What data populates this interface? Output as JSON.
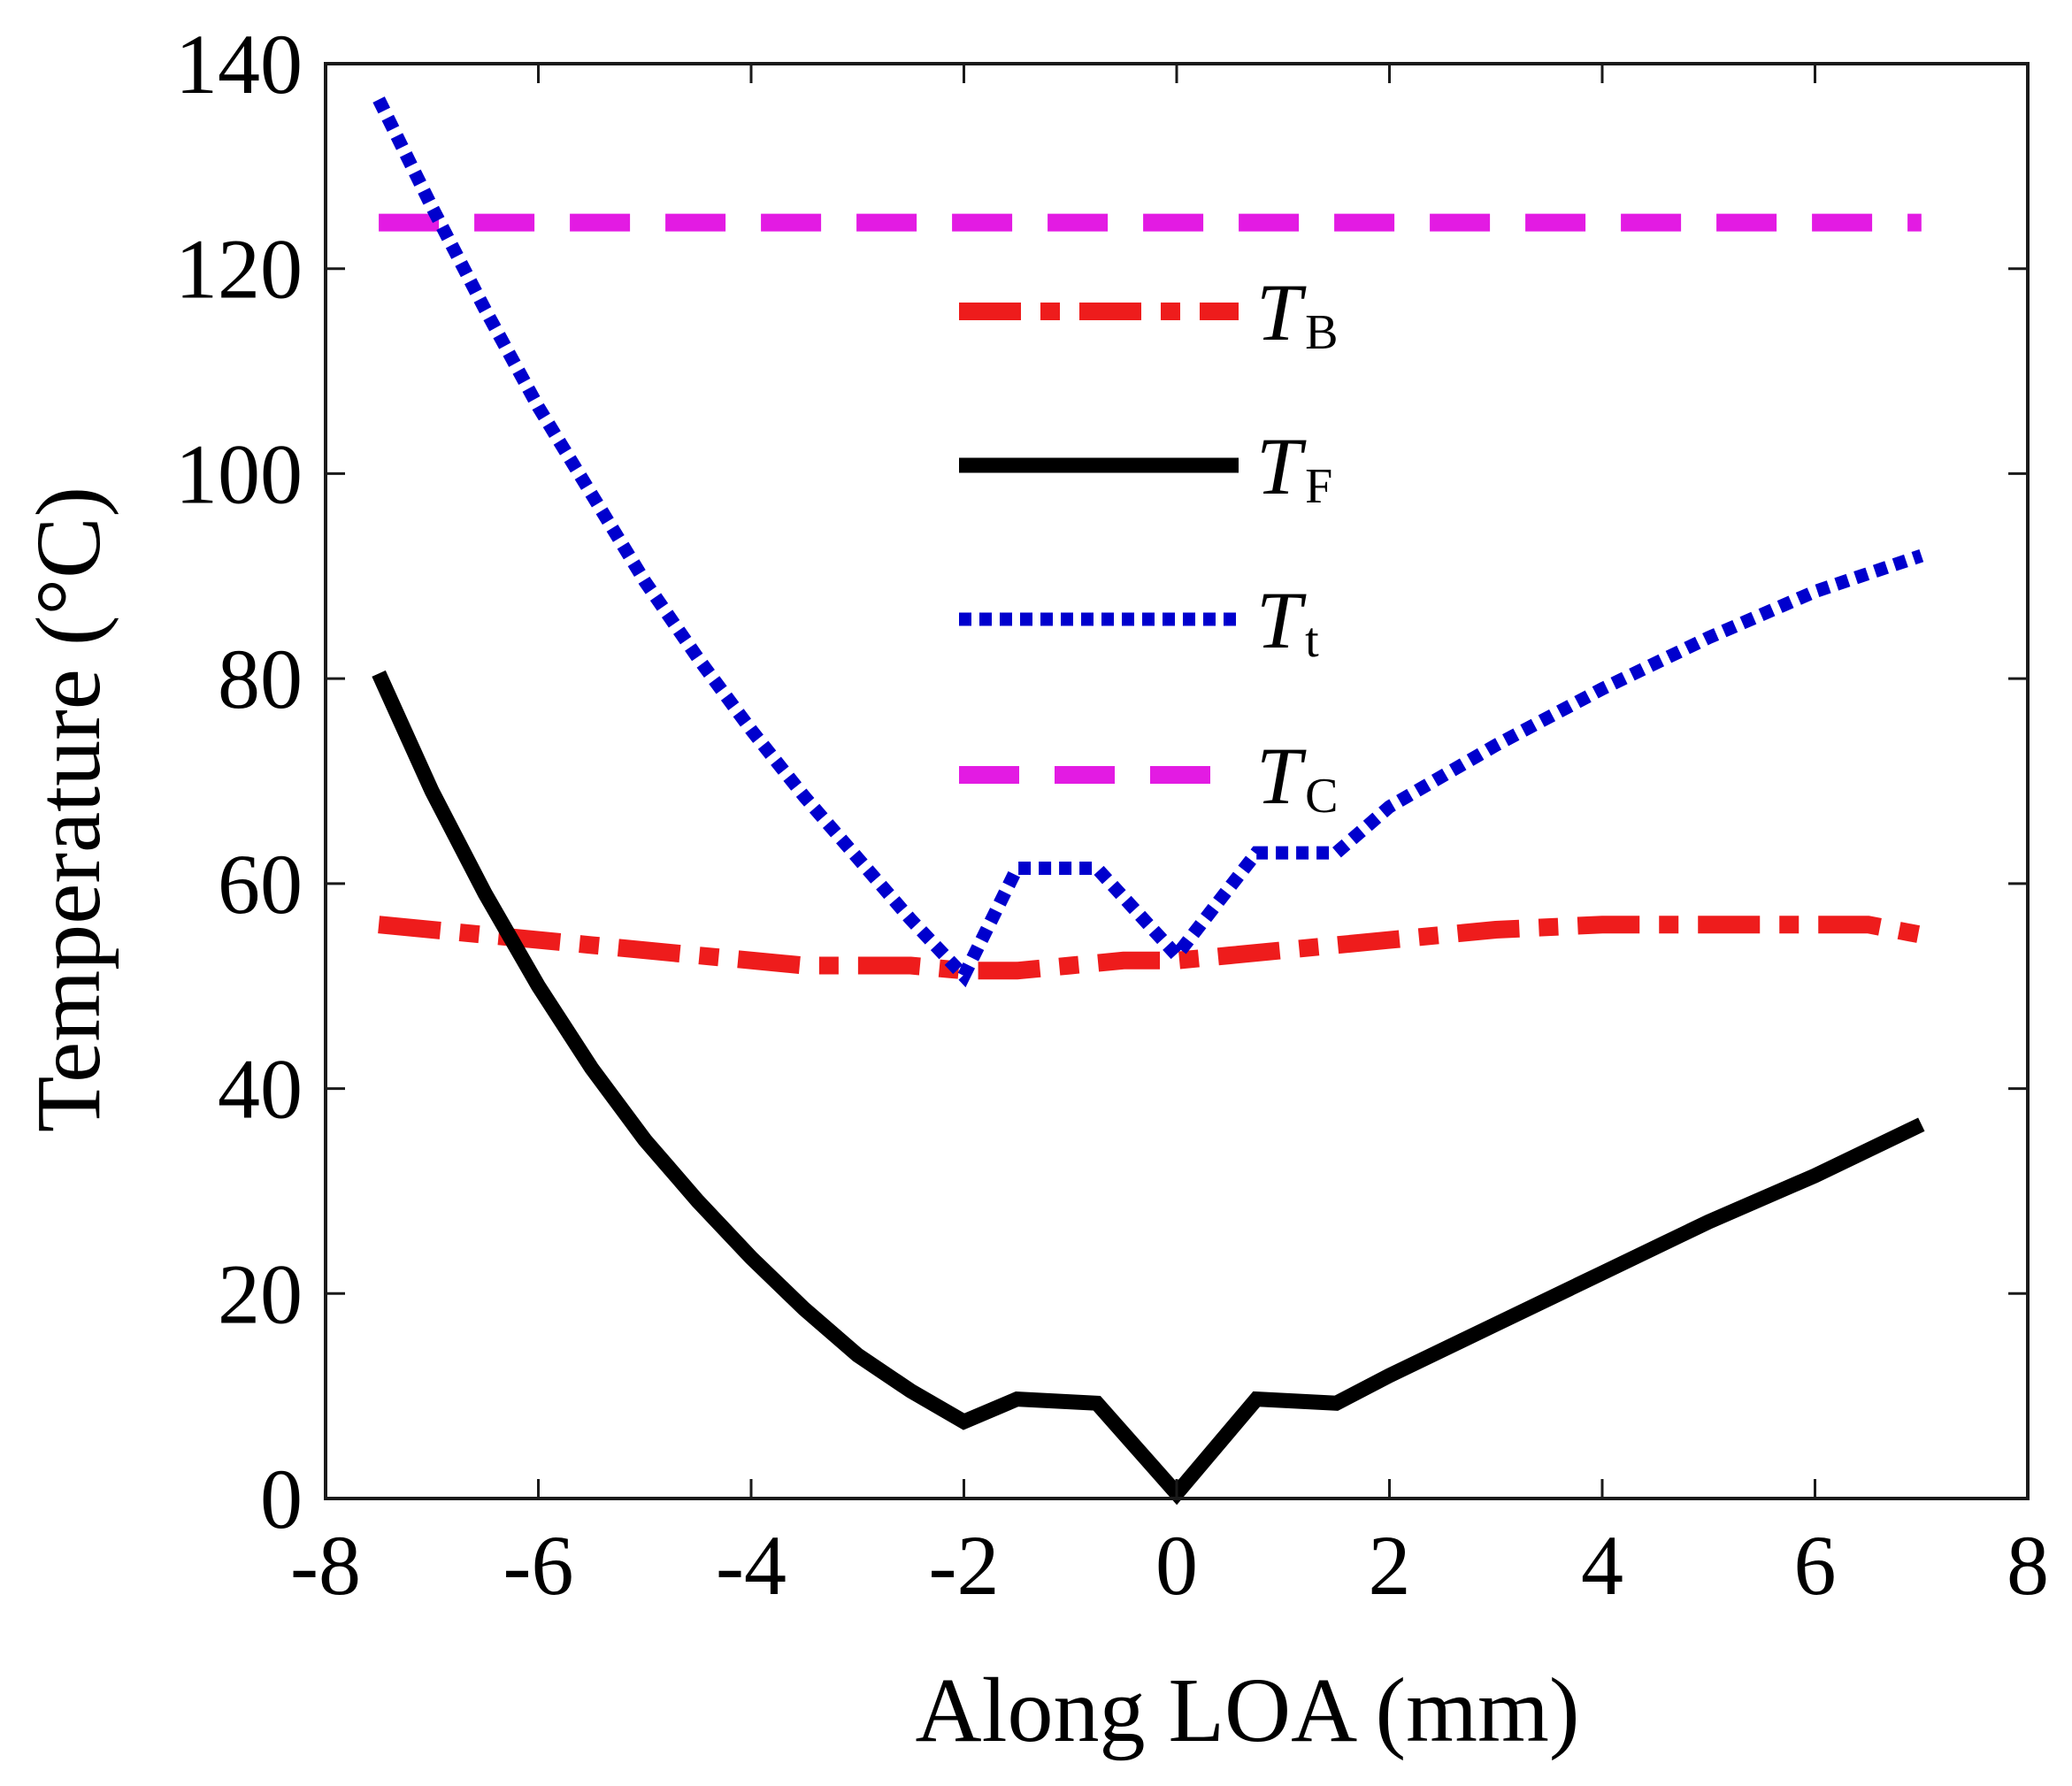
{
  "chart_data": {
    "type": "line",
    "title": "",
    "xlabel": "Along LOA (mm)",
    "ylabel": "Temperature (°C)",
    "xlim": [
      -8,
      8
    ],
    "ylim": [
      0,
      140
    ],
    "xticks": [
      -8,
      -6,
      -4,
      -2,
      0,
      2,
      4,
      6,
      8
    ],
    "yticks": [
      0,
      20,
      40,
      60,
      80,
      100,
      120,
      140
    ],
    "xtick_labels": [
      "-8",
      "-6",
      "-4",
      "-2",
      "0",
      "2",
      "4",
      "6",
      "8"
    ],
    "ytick_labels": [
      "0",
      "20",
      "40",
      "60",
      "80",
      "100",
      "120",
      "140"
    ],
    "grid": false,
    "legend_position": "center",
    "series": [
      {
        "name": "T_B",
        "legend_main": "T",
        "legend_sub": "B",
        "color": "#ee1c1c",
        "style": "dashdot",
        "x": [
          -7.5,
          -6.5,
          -5.5,
          -4.5,
          -3.5,
          -2.5,
          -2.0,
          -1.5,
          -1.0,
          -0.5,
          0.0,
          0.5,
          1.0,
          1.5,
          2.0,
          3.0,
          4.0,
          5.0,
          5.5,
          6.0,
          6.5,
          7.0
        ],
        "y": [
          56,
          55,
          54,
          53,
          52,
          52,
          51.5,
          51.5,
          52,
          52.5,
          52.5,
          53,
          53.5,
          54,
          54.5,
          55.5,
          56,
          56,
          56,
          56,
          56,
          55
        ]
      },
      {
        "name": "T_F",
        "legend_main": "T",
        "legend_sub": "F",
        "color": "#000000",
        "style": "solid",
        "x": [
          -7.5,
          -7.0,
          -6.5,
          -6.0,
          -5.5,
          -5.0,
          -4.5,
          -4.0,
          -3.5,
          -3.0,
          -2.5,
          -2.0,
          -1.5,
          -0.75,
          0.0,
          0.75,
          1.5,
          2.0,
          3.0,
          4.0,
          5.0,
          6.0,
          7.0
        ],
        "y": [
          80.5,
          69,
          59,
          50,
          42,
          35,
          29,
          23.5,
          18.5,
          14,
          10.5,
          7.5,
          9.7,
          9.3,
          0.5,
          9.7,
          9.3,
          12,
          17,
          22,
          27,
          31.5,
          36.5
        ]
      },
      {
        "name": "T_t",
        "legend_main": "T",
        "legend_sub": "t",
        "color": "#0000cd",
        "style": "dotted",
        "x": [
          -7.5,
          -7.0,
          -6.5,
          -6.0,
          -5.5,
          -5.0,
          -4.5,
          -4.0,
          -3.5,
          -3.0,
          -2.5,
          -2.0,
          -1.5,
          -0.75,
          0.0,
          0.75,
          1.5,
          2.0,
          3.0,
          4.0,
          5.0,
          6.0,
          7.0
        ],
        "y": [
          136.5,
          126,
          116,
          106.5,
          98,
          89.5,
          82,
          75,
          68.5,
          62.5,
          56.5,
          51,
          61.5,
          61.5,
          53,
          63,
          63,
          67.5,
          73.5,
          79,
          84,
          88.5,
          92
        ]
      },
      {
        "name": "T_C",
        "legend_main": "T",
        "legend_sub": "C",
        "color": "#e31be3",
        "style": "dashed",
        "x": [
          -7.5,
          7.0
        ],
        "y": [
          124.5,
          124.5
        ]
      }
    ]
  }
}
